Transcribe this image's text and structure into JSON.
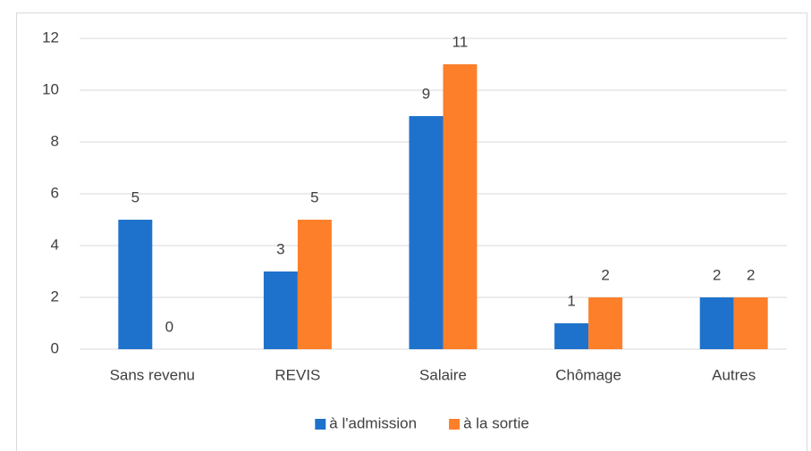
{
  "chart_data": {
    "type": "bar",
    "categories": [
      "Sans revenu",
      "REVIS",
      "Salaire",
      "Chômage",
      "Autres"
    ],
    "series": [
      {
        "name": "à l'admission",
        "color": "#1f72cc",
        "values": [
          5,
          3,
          9,
          1,
          2
        ]
      },
      {
        "name": "à la sortie",
        "color": "#fd7f2a",
        "values": [
          0,
          5,
          11,
          2,
          2
        ]
      }
    ],
    "ylim": [
      0,
      12
    ],
    "yticks": [
      0,
      2,
      4,
      6,
      8,
      10,
      12
    ],
    "grid": true,
    "legend": "bottom"
  }
}
